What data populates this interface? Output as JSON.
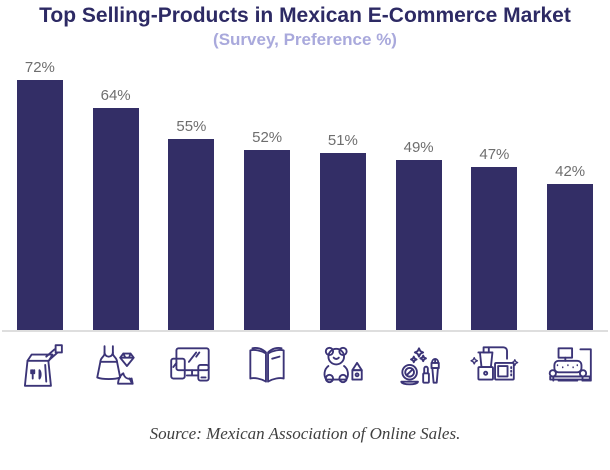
{
  "header": {
    "title": "Top Selling-Products in Mexican E-Commerce Market",
    "subtitle": "(Survey, Preference %)"
  },
  "chart_data": {
    "type": "bar",
    "title": "Top Selling-Products in Mexican E-Commerce Market",
    "subtitle": "(Survey, Preference %)",
    "categories": [
      "Groceries & Food",
      "Fashion & Accessories",
      "Electronics",
      "Books",
      "Toys",
      "Beauty & Cosmetics",
      "Home Appliances",
      "Furniture"
    ],
    "values": [
      72,
      64,
      55,
      52,
      51,
      49,
      47,
      42
    ],
    "value_labels": [
      "72%",
      "64%",
      "55%",
      "52%",
      "51%",
      "49%",
      "47%",
      "42%"
    ],
    "unit": "%",
    "xlabel": "",
    "ylabel": "Preference %",
    "ylim": [
      0,
      80
    ],
    "legend": "none",
    "grid": "off",
    "category_axis_style": "icons",
    "icon_names": [
      "groceries-bag-icon",
      "dress-fashion-icon",
      "electronics-devices-icon",
      "open-book-icon",
      "teddy-bear-toys-icon",
      "cosmetics-makeup-icon",
      "kitchen-appliances-icon",
      "armchair-furniture-icon"
    ]
  },
  "colors": {
    "bar": "#332E66",
    "title": "#2D2A64",
    "subtitle": "#A9A9DC",
    "value_label": "#6E6E6E",
    "icon_stroke": "#3B3477",
    "baseline": "#DEDEDE",
    "source_text": "#3F3F3F"
  },
  "footer": {
    "source": "Source: Mexican Association of Online Sales."
  }
}
